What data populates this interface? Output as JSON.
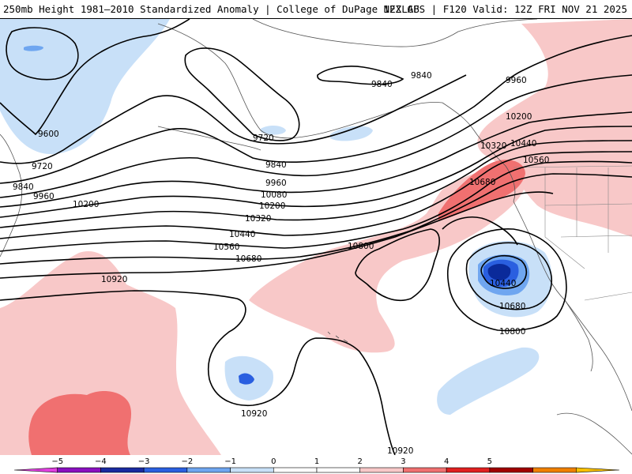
{
  "header": {
    "title": "250mb Height 1981–2010 Standardized Anomaly | College of DuPage NEXLAB",
    "run_info": "12Z GFS | F120 Valid: 12Z FRI NOV 21 2025"
  },
  "colors": {
    "pos1": "#f8c8c8",
    "pos2": "#f07070",
    "neg1": "#c8e0f8",
    "neg2": "#6fa6f0",
    "neg3": "#2a5fe0",
    "neg4": "#0a2a9a"
  },
  "contours": {
    "h9600": "9600",
    "h9720a": "9720",
    "h9720b": "9720",
    "h9840a": "9840",
    "h9840b": "9840",
    "h9840c": "9840",
    "h9840d": "9840",
    "h9960a": "9960",
    "h9960b": "9960",
    "h9960c": "9960",
    "h10080": "10080",
    "h10200a": "10200",
    "h10200b": "10200",
    "h10200c": "10200",
    "h10320a": "10320",
    "h10320b": "10320",
    "h10440a": "10440",
    "h10440b": "10440",
    "h10440c": "10440",
    "h10560a": "10560",
    "h10560b": "10560",
    "h10680a": "10680",
    "h10680b": "10680",
    "h10680c": "10680",
    "h10800a": "10800",
    "h10800b": "10800",
    "h10920a": "10920",
    "h10920b": "10920",
    "h10920c": "10920"
  },
  "colorbar": {
    "ticks": [
      "−5",
      "−4",
      "−3",
      "−2",
      "−1",
      "0",
      "1",
      "2",
      "3",
      "4",
      "5"
    ],
    "segments": [
      {
        "color": "#e040e0"
      },
      {
        "color": "#8a10c0"
      },
      {
        "color": "#1a2aa0"
      },
      {
        "color": "#2a5fe0"
      },
      {
        "color": "#6fa6f0"
      },
      {
        "color": "#c8e0f8"
      },
      {
        "color": "#ffffff"
      },
      {
        "color": "#ffffff"
      },
      {
        "color": "#f8c8c8"
      },
      {
        "color": "#f07070"
      },
      {
        "color": "#e02020"
      },
      {
        "color": "#a00000"
      },
      {
        "color": "#f08000"
      },
      {
        "color": "#f8c000"
      }
    ]
  }
}
